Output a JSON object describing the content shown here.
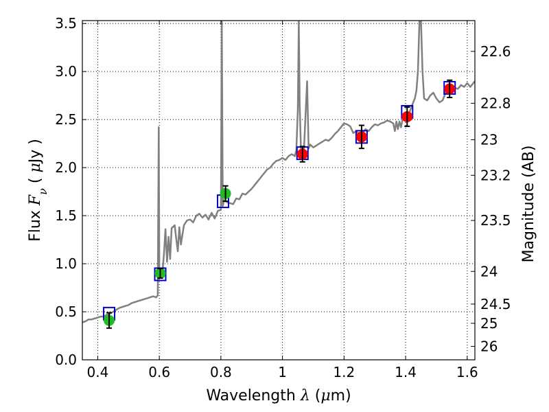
{
  "chart_data": {
    "type": "scatter",
    "title": "",
    "xlabel": {
      "prefix": "Wavelength  ",
      "symbol": "λ",
      "mid": " (",
      "mu": "μ",
      "unit": "m)"
    },
    "ylabel": {
      "prefix": "Flux  ",
      "symbol": "F",
      "sub": "ν",
      "mid": "  ( ",
      "mu": "μ",
      "unit": "Jy )"
    },
    "y2label": "Magnitude (AB)",
    "xlim": [
      0.35,
      1.625
    ],
    "ylim": [
      0.0,
      3.53
    ],
    "grid": true,
    "x_ticks": [
      {
        "value": 0.4,
        "label": "0.4"
      },
      {
        "value": 0.6,
        "label": "0.6"
      },
      {
        "value": 0.8,
        "label": "0.8"
      },
      {
        "value": 1.0,
        "label": "1"
      },
      {
        "value": 1.2,
        "label": "1.2"
      },
      {
        "value": 1.4,
        "label": "1.4"
      },
      {
        "value": 1.6,
        "label": "1.6"
      }
    ],
    "y_ticks": [
      {
        "value": 0.0,
        "label": "0.0"
      },
      {
        "value": 0.5,
        "label": "0.5"
      },
      {
        "value": 1.0,
        "label": "1.0"
      },
      {
        "value": 1.5,
        "label": "1.5"
      },
      {
        "value": 2.0,
        "label": "2.0"
      },
      {
        "value": 2.5,
        "label": "2.5"
      },
      {
        "value": 3.0,
        "label": "3.0"
      },
      {
        "value": 3.5,
        "label": "3.5"
      }
    ],
    "y2_ticks": [
      {
        "flux": 3.21,
        "label": "22.6"
      },
      {
        "flux": 2.67,
        "label": "22.8"
      },
      {
        "flux": 2.29,
        "label": "23"
      },
      {
        "flux": 1.92,
        "label": "23.2"
      },
      {
        "flux": 1.45,
        "label": "23.5"
      },
      {
        "flux": 0.92,
        "label": "24"
      },
      {
        "flux": 0.58,
        "label": "24.5"
      },
      {
        "flux": 0.38,
        "label": "25"
      },
      {
        "flux": 0.14,
        "label": "26"
      }
    ],
    "colors": {
      "spectrum": "#808080",
      "model_box": "#0000cc",
      "optical_point": "#22bb22",
      "nir_point": "#ff0000",
      "error_bar": "#000000"
    },
    "series": [
      {
        "kind": "spectrum",
        "points": [
          [
            0.35,
            0.39
          ],
          [
            0.36,
            0.4
          ],
          [
            0.37,
            0.42
          ],
          [
            0.38,
            0.42
          ],
          [
            0.39,
            0.43
          ],
          [
            0.4,
            0.44
          ],
          [
            0.41,
            0.45
          ],
          [
            0.42,
            0.45
          ],
          [
            0.43,
            0.47
          ],
          [
            0.44,
            0.48
          ],
          [
            0.45,
            0.5
          ],
          [
            0.46,
            0.52
          ],
          [
            0.47,
            0.54
          ],
          [
            0.48,
            0.55
          ],
          [
            0.49,
            0.56
          ],
          [
            0.5,
            0.57
          ],
          [
            0.51,
            0.59
          ],
          [
            0.52,
            0.6
          ],
          [
            0.53,
            0.61
          ],
          [
            0.54,
            0.62
          ],
          [
            0.55,
            0.63
          ],
          [
            0.56,
            0.64
          ],
          [
            0.57,
            0.65
          ],
          [
            0.58,
            0.66
          ],
          [
            0.59,
            0.65
          ],
          [
            0.595,
            0.67
          ],
          [
            0.598,
            2.42
          ],
          [
            0.6,
            0.9
          ],
          [
            0.605,
            0.86
          ],
          [
            0.61,
            0.9
          ],
          [
            0.615,
            1.1
          ],
          [
            0.62,
            1.36
          ],
          [
            0.625,
            1.02
          ],
          [
            0.63,
            1.28
          ],
          [
            0.635,
            1.05
          ],
          [
            0.64,
            1.37
          ],
          [
            0.65,
            1.4
          ],
          [
            0.655,
            1.26
          ],
          [
            0.66,
            1.13
          ],
          [
            0.665,
            1.38
          ],
          [
            0.67,
            1.2
          ],
          [
            0.68,
            1.4
          ],
          [
            0.69,
            1.45
          ],
          [
            0.7,
            1.46
          ],
          [
            0.71,
            1.43
          ],
          [
            0.72,
            1.5
          ],
          [
            0.73,
            1.52
          ],
          [
            0.74,
            1.48
          ],
          [
            0.75,
            1.51
          ],
          [
            0.76,
            1.46
          ],
          [
            0.77,
            1.53
          ],
          [
            0.78,
            1.47
          ],
          [
            0.79,
            1.55
          ],
          [
            0.8,
            1.56
          ],
          [
            0.803,
            3.52
          ],
          [
            0.806,
            1.6
          ],
          [
            0.81,
            1.66
          ],
          [
            0.82,
            1.64
          ],
          [
            0.83,
            1.63
          ],
          [
            0.84,
            1.62
          ],
          [
            0.85,
            1.68
          ],
          [
            0.86,
            1.67
          ],
          [
            0.87,
            1.73
          ],
          [
            0.88,
            1.72
          ],
          [
            0.89,
            1.75
          ],
          [
            0.9,
            1.78
          ],
          [
            0.91,
            1.82
          ],
          [
            0.92,
            1.86
          ],
          [
            0.93,
            1.9
          ],
          [
            0.94,
            1.94
          ],
          [
            0.95,
            1.98
          ],
          [
            0.96,
            2.0
          ],
          [
            0.97,
            2.04
          ],
          [
            0.98,
            2.07
          ],
          [
            0.99,
            2.08
          ],
          [
            1.0,
            2.1
          ],
          [
            1.01,
            2.08
          ],
          [
            1.02,
            2.12
          ],
          [
            1.03,
            2.14
          ],
          [
            1.04,
            2.12
          ],
          [
            1.045,
            2.18
          ],
          [
            1.05,
            2.6
          ],
          [
            1.053,
            3.52
          ],
          [
            1.056,
            2.65
          ],
          [
            1.06,
            2.2
          ],
          [
            1.065,
            2.14
          ],
          [
            1.07,
            2.2
          ],
          [
            1.08,
            2.9
          ],
          [
            1.085,
            2.2
          ],
          [
            1.09,
            2.24
          ],
          [
            1.1,
            2.21
          ],
          [
            1.11,
            2.23
          ],
          [
            1.12,
            2.25
          ],
          [
            1.13,
            2.27
          ],
          [
            1.14,
            2.29
          ],
          [
            1.15,
            2.28
          ],
          [
            1.16,
            2.31
          ],
          [
            1.17,
            2.35
          ],
          [
            1.18,
            2.38
          ],
          [
            1.19,
            2.42
          ],
          [
            1.2,
            2.46
          ],
          [
            1.21,
            2.45
          ],
          [
            1.22,
            2.43
          ],
          [
            1.23,
            2.36
          ],
          [
            1.24,
            2.38
          ],
          [
            1.25,
            2.34
          ],
          [
            1.26,
            2.36
          ],
          [
            1.27,
            2.4
          ],
          [
            1.28,
            2.38
          ],
          [
            1.29,
            2.42
          ],
          [
            1.3,
            2.45
          ],
          [
            1.31,
            2.44
          ],
          [
            1.32,
            2.46
          ],
          [
            1.33,
            2.47
          ],
          [
            1.34,
            2.49
          ],
          [
            1.35,
            2.48
          ],
          [
            1.36,
            2.46
          ],
          [
            1.365,
            2.38
          ],
          [
            1.37,
            2.48
          ],
          [
            1.375,
            2.4
          ],
          [
            1.38,
            2.48
          ],
          [
            1.385,
            2.42
          ],
          [
            1.39,
            2.5
          ],
          [
            1.4,
            2.53
          ],
          [
            1.41,
            2.55
          ],
          [
            1.42,
            2.64
          ],
          [
            1.43,
            2.72
          ],
          [
            1.435,
            2.8
          ],
          [
            1.44,
            3.0
          ],
          [
            1.445,
            3.52
          ],
          [
            1.45,
            3.52
          ],
          [
            1.455,
            3.0
          ],
          [
            1.46,
            2.72
          ],
          [
            1.47,
            2.7
          ],
          [
            1.48,
            2.75
          ],
          [
            1.49,
            2.78
          ],
          [
            1.5,
            2.72
          ],
          [
            1.51,
            2.68
          ],
          [
            1.52,
            2.7
          ],
          [
            1.53,
            2.78
          ],
          [
            1.54,
            2.82
          ],
          [
            1.55,
            2.8
          ],
          [
            1.56,
            2.83
          ],
          [
            1.57,
            2.82
          ],
          [
            1.58,
            2.86
          ],
          [
            1.59,
            2.84
          ],
          [
            1.6,
            2.88
          ],
          [
            1.61,
            2.84
          ],
          [
            1.625,
            2.9
          ]
        ]
      },
      {
        "kind": "model",
        "points": [
          [
            0.437,
            0.48
          ],
          [
            0.603,
            0.89
          ],
          [
            0.807,
            1.65
          ],
          [
            1.065,
            2.15
          ],
          [
            1.257,
            2.32
          ],
          [
            1.405,
            2.58
          ],
          [
            1.543,
            2.83
          ]
        ]
      },
      {
        "kind": "optical",
        "points": [
          {
            "x": 0.437,
            "y": 0.41,
            "err": 0.08
          },
          {
            "x": 0.603,
            "y": 0.9,
            "err": 0.05
          },
          {
            "x": 0.815,
            "y": 1.73,
            "err": 0.08
          }
        ]
      },
      {
        "kind": "nir",
        "points": [
          {
            "x": 1.065,
            "y": 2.14,
            "err": 0.08
          },
          {
            "x": 1.257,
            "y": 2.32,
            "err": 0.12
          },
          {
            "x": 1.405,
            "y": 2.53,
            "err": 0.1
          },
          {
            "x": 1.543,
            "y": 2.82,
            "err": 0.09
          }
        ]
      }
    ]
  }
}
